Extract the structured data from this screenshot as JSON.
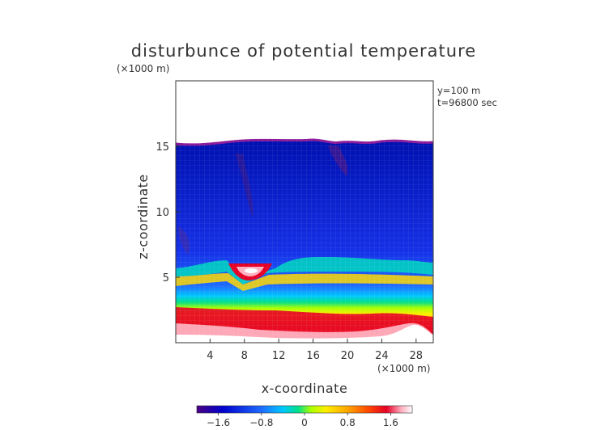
{
  "chart_data": {
    "type": "heatmap",
    "title": "disturbunce of potential temperature",
    "xlabel": "x-coordinate",
    "ylabel": "z-coordinate",
    "x_unit": "(×1000 m)",
    "z_unit": "(×1000 m)",
    "annotations": [
      "y=100 m",
      "t=96800 sec"
    ],
    "xlim": [
      0,
      30
    ],
    "ylim": [
      0,
      20
    ],
    "x_ticks": [
      4,
      8,
      12,
      16,
      20,
      24,
      28
    ],
    "y_ticks": [
      5,
      10,
      15
    ],
    "colorbar": {
      "range": [
        -2.0,
        2.0
      ],
      "ticks": [
        "−1.6",
        "−0.8",
        "0",
        "0.8",
        "1.6"
      ],
      "tick_values": [
        -1.6,
        -0.8,
        0,
        0.8,
        1.6
      ]
    },
    "colormap": [
      "#4b0082",
      "#0000cd",
      "#1e6bff",
      "#00c8ff",
      "#00e08a",
      "#aaff00",
      "#ffee00",
      "#ffa500",
      "#ff4500",
      "#e60026",
      "#ffb0c0",
      "#ffffff"
    ],
    "fields": {
      "model_top_km": 15.5,
      "layer_interface_km": 5.8,
      "warm_anomaly_center_km": [
        8.5,
        5.8
      ],
      "surface_boundary_km": 0.5
    }
  }
}
